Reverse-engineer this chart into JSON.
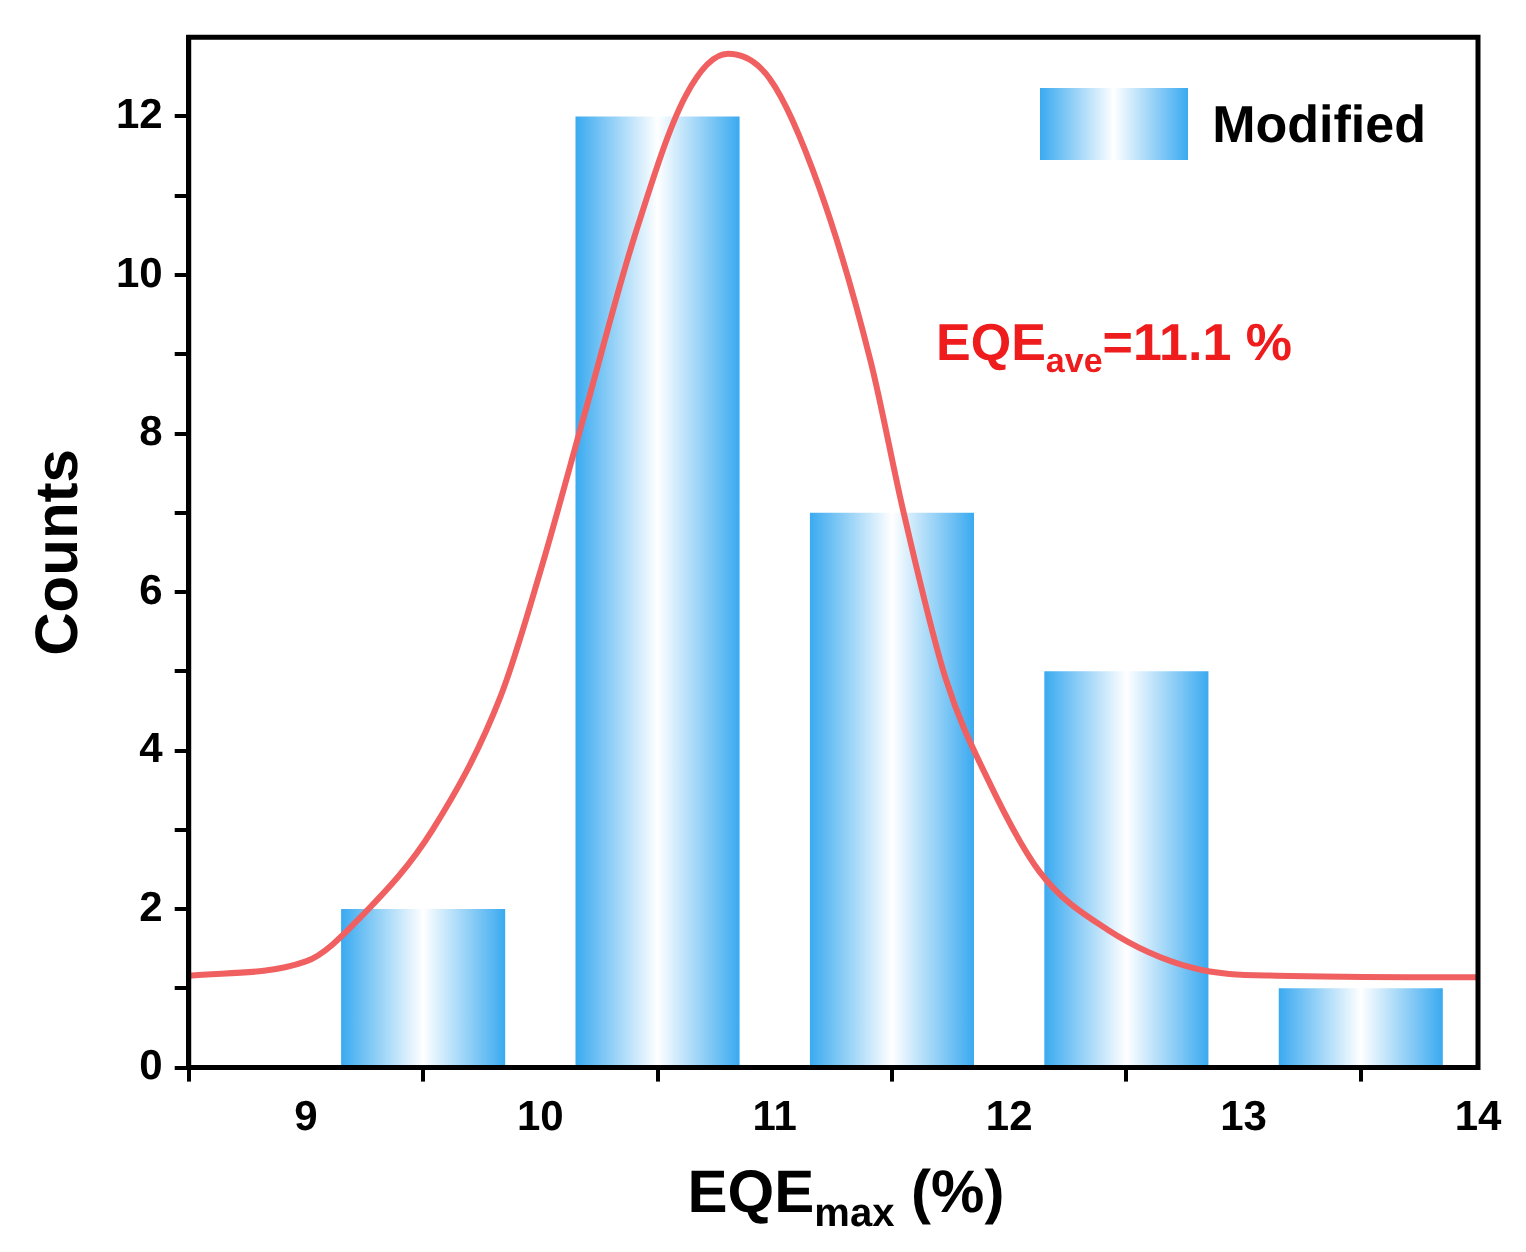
{
  "chart_data": {
    "type": "histogram",
    "xlabel": "EQE$_{max}$ (%)",
    "ylabel": "Counts",
    "bins": [
      9,
      10,
      11,
      12,
      13,
      14
    ],
    "series": [
      {
        "type": "histogram",
        "name": "Modified",
        "color": "#3aaaf0",
        "values": [
          2,
          12,
          7,
          5,
          1
        ]
      },
      {
        "type": "line",
        "color": "#f06060",
        "x": [
          8.5,
          9.0,
          9.25,
          9.54,
          9.83,
          10.0,
          10.19,
          10.4,
          10.62,
          10.8,
          10.98,
          11.19,
          11.41,
          11.55,
          11.73,
          11.91,
          12.13,
          12.42,
          12.78,
          13.14,
          14.0
        ],
        "values": [
          1.16,
          1.34,
          1.95,
          3.0,
          4.68,
          6.26,
          8.26,
          10.47,
          12.26,
          12.79,
          12.47,
          11.1,
          8.9,
          7.0,
          4.9,
          3.63,
          2.47,
          1.74,
          1.26,
          1.16,
          1.14
        ]
      }
    ],
    "xlim": [
      8.5,
      14
    ],
    "xticks": [
      9,
      10,
      11,
      12,
      13,
      14
    ],
    "ylim": [
      0,
      13
    ],
    "yticks": [
      0,
      {
        "value": 1,
        "label": null
      },
      2,
      {
        "value": 3,
        "label": null
      },
      4,
      {
        "value": 5,
        "label": null
      },
      6,
      {
        "value": 7,
        "label": null
      },
      8,
      {
        "value": 9,
        "label": null
      },
      10,
      {
        "value": 11,
        "label": null
      },
      12
    ],
    "legend": "top right",
    "marker": "none",
    "annotations": [
      "EQE$_{ave}$=11.1 %"
    ]
  }
}
